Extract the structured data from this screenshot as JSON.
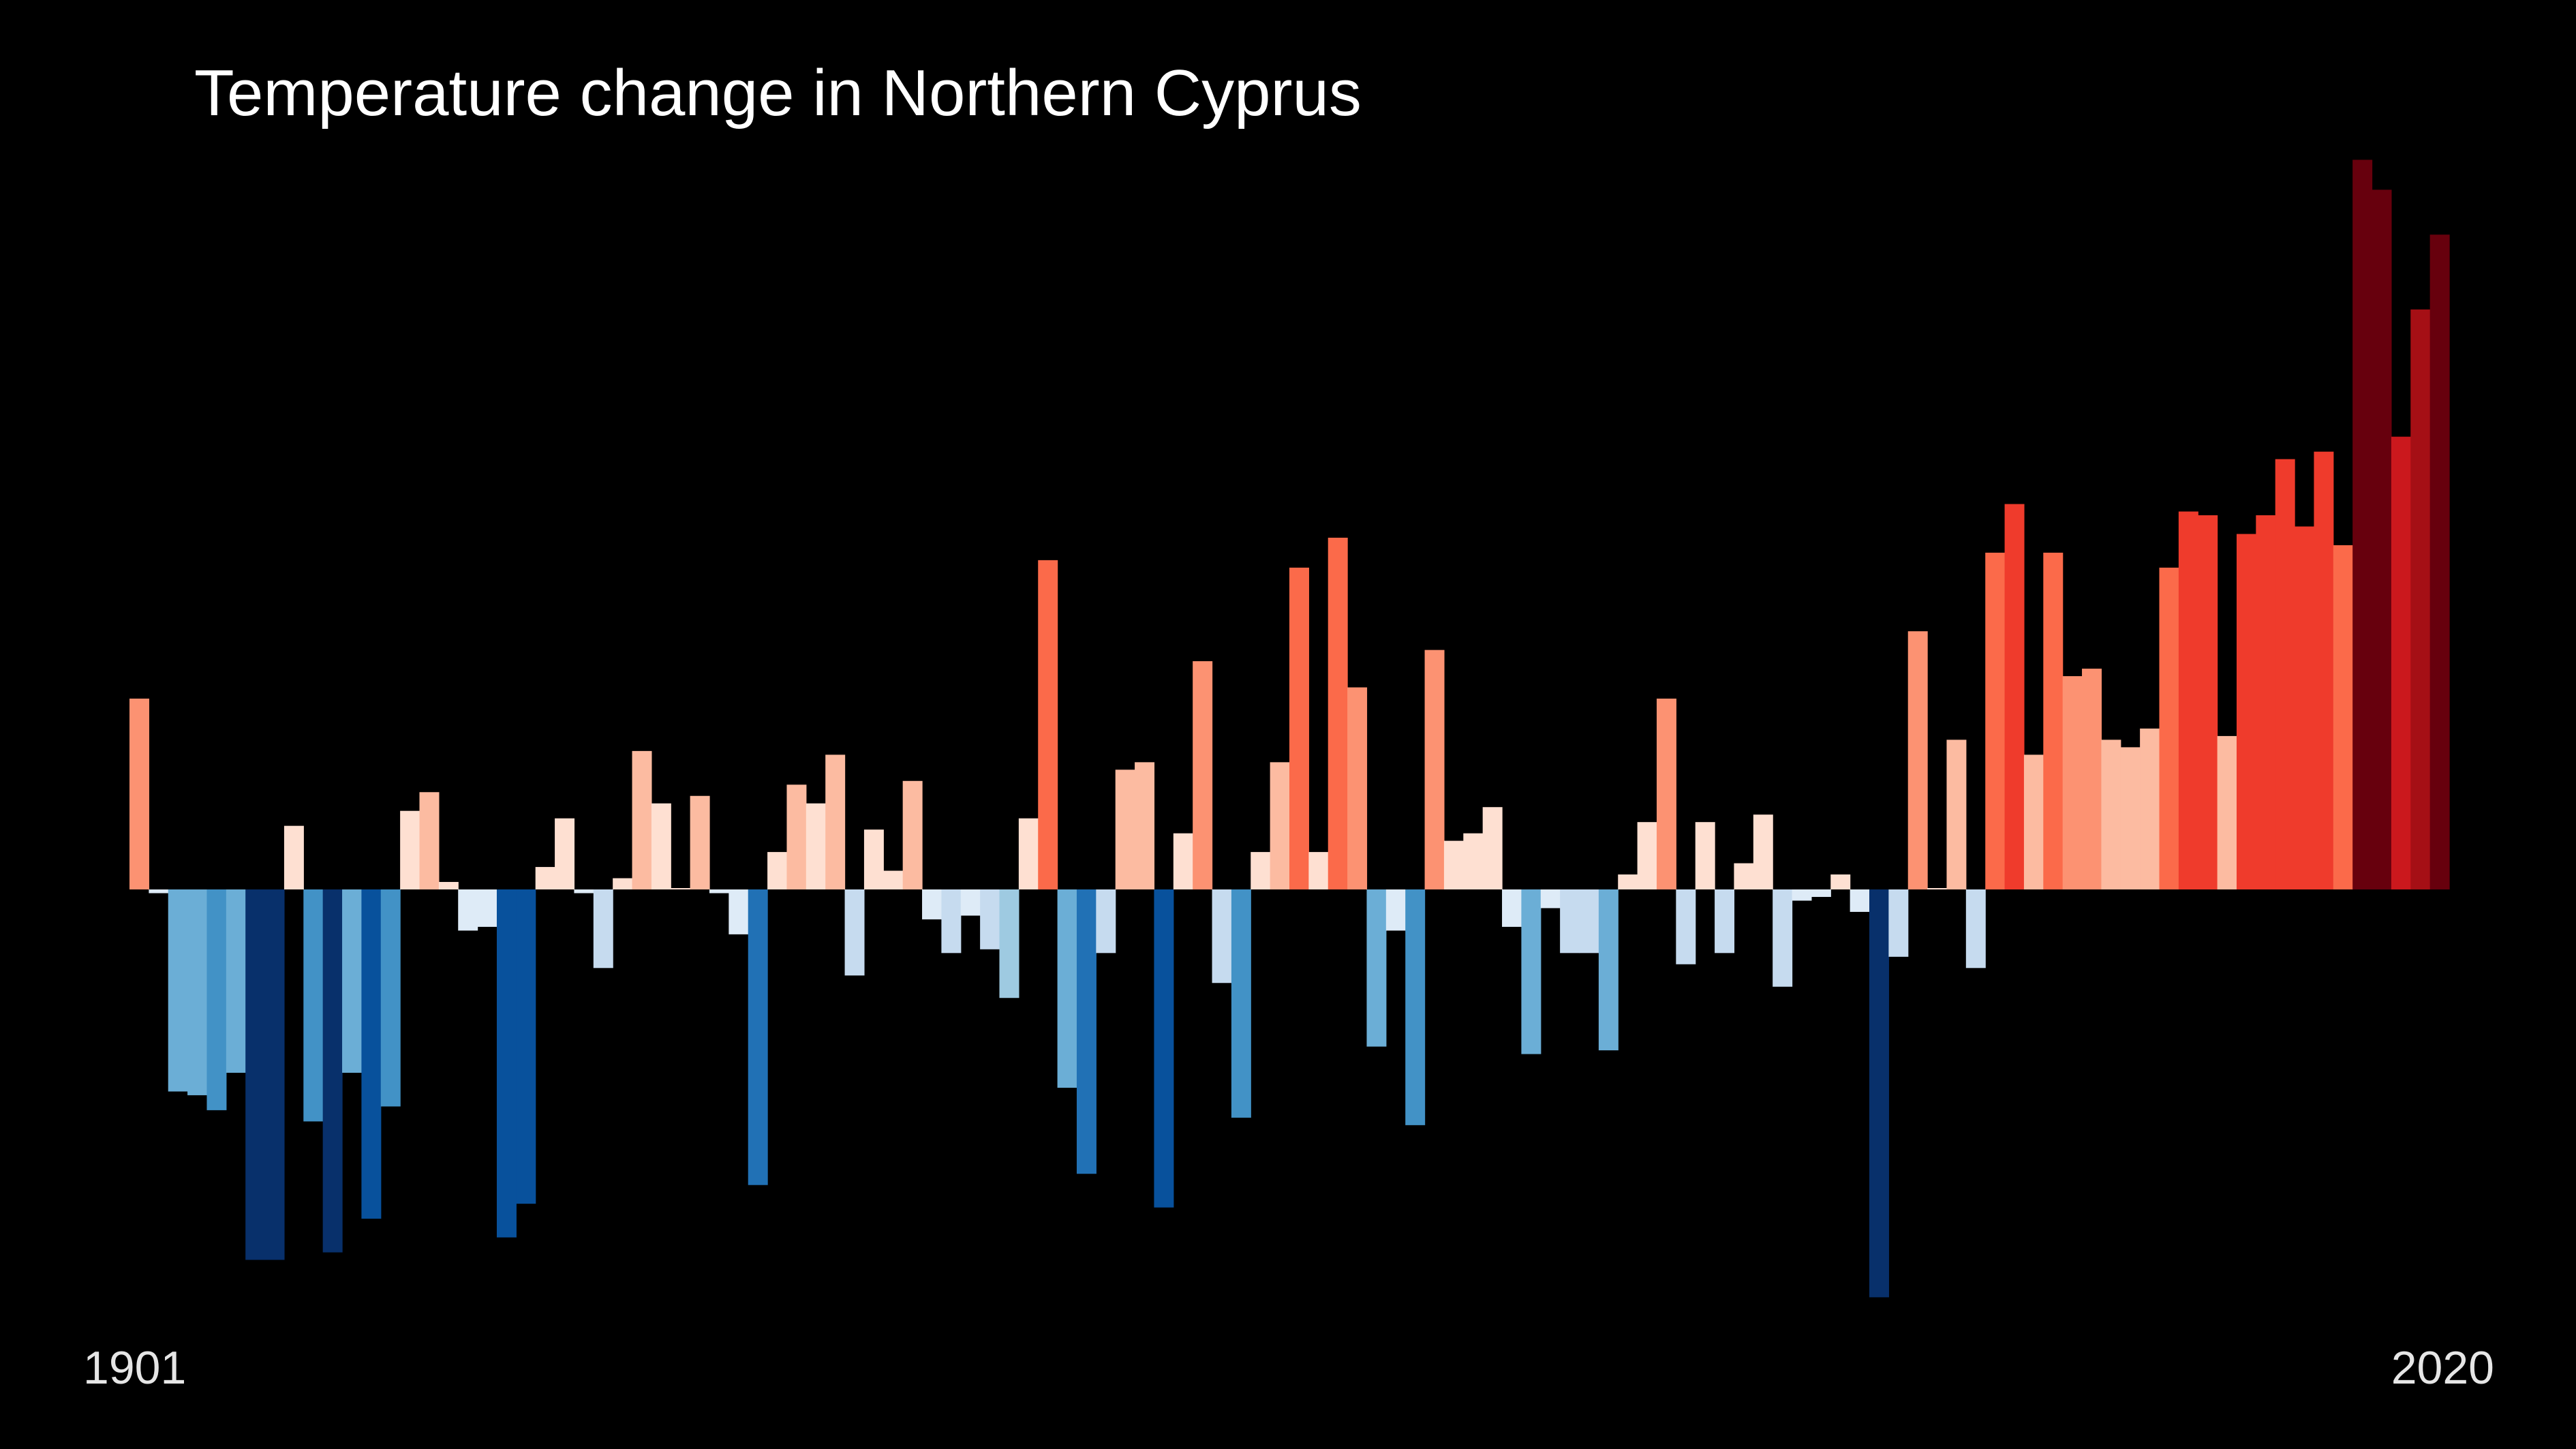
{
  "chart_data": {
    "type": "bar",
    "title": "Temperature change in Northern Cyprus",
    "x_start_label": "1901",
    "x_end_label": "2020",
    "x": [
      1901,
      1902,
      1903,
      1904,
      1905,
      1906,
      1907,
      1908,
      1909,
      1910,
      1911,
      1912,
      1913,
      1914,
      1915,
      1916,
      1917,
      1918,
      1919,
      1920,
      1921,
      1922,
      1923,
      1924,
      1925,
      1926,
      1927,
      1928,
      1929,
      1930,
      1931,
      1932,
      1933,
      1934,
      1935,
      1936,
      1937,
      1938,
      1939,
      1940,
      1941,
      1942,
      1943,
      1944,
      1945,
      1946,
      1947,
      1948,
      1949,
      1950,
      1951,
      1952,
      1953,
      1954,
      1955,
      1956,
      1957,
      1958,
      1959,
      1960,
      1961,
      1962,
      1963,
      1964,
      1965,
      1966,
      1967,
      1968,
      1969,
      1970,
      1971,
      1972,
      1973,
      1974,
      1975,
      1976,
      1977,
      1978,
      1979,
      1980,
      1981,
      1982,
      1983,
      1984,
      1985,
      1986,
      1987,
      1988,
      1989,
      1990,
      1991,
      1992,
      1993,
      1994,
      1995,
      1996,
      1997,
      1998,
      1999,
      2000,
      2001,
      2002,
      2003,
      2004,
      2005,
      2006,
      2007,
      2008,
      2009,
      2010,
      2011,
      2012,
      2013,
      2014,
      2015,
      2016,
      2017,
      2018,
      2019,
      2020
    ],
    "values": [
      0.51,
      -0.01,
      -0.54,
      -0.55,
      -0.59,
      -0.49,
      -0.99,
      -0.99,
      0.17,
      -0.62,
      -0.97,
      -0.49,
      -0.88,
      -0.58,
      0.21,
      0.26,
      0.02,
      -0.11,
      -0.1,
      -0.93,
      -0.84,
      0.06,
      0.19,
      -0.01,
      -0.21,
      0.03,
      0.37,
      0.23,
      0.0,
      0.25,
      -0.01,
      -0.12,
      -0.79,
      0.1,
      0.28,
      0.23,
      0.36,
      -0.23,
      0.16,
      0.05,
      0.29,
      -0.08,
      -0.17,
      -0.07,
      -0.16,
      -0.29,
      0.19,
      0.88,
      -0.53,
      -0.76,
      -0.17,
      0.32,
      0.34,
      -0.85,
      0.15,
      0.61,
      -0.25,
      -0.61,
      0.1,
      0.34,
      0.86,
      0.1,
      0.94,
      0.54,
      -0.42,
      -0.11,
      -0.63,
      0.64,
      0.13,
      0.15,
      0.22,
      -0.1,
      -0.44,
      -0.05,
      -0.17,
      -0.17,
      -0.43,
      0.04,
      0.18,
      0.51,
      -0.2,
      0.18,
      -0.17,
      0.07,
      0.2,
      -0.26,
      -0.03,
      -0.02,
      0.04,
      -0.06,
      -1.09,
      -0.18,
      0.69,
      0.0,
      0.4,
      -0.21,
      0.9,
      1.03,
      0.36,
      0.9,
      0.57,
      0.59,
      0.4,
      0.38,
      0.43,
      0.86,
      1.01,
      1.0,
      0.41,
      0.95,
      1.0,
      1.15,
      0.97,
      1.17,
      0.92,
      1.95,
      1.87,
      1.21,
      1.55,
      1.75
    ],
    "ylim": [
      -1.2,
      2.0
    ],
    "grid": false,
    "legend": "none"
  }
}
